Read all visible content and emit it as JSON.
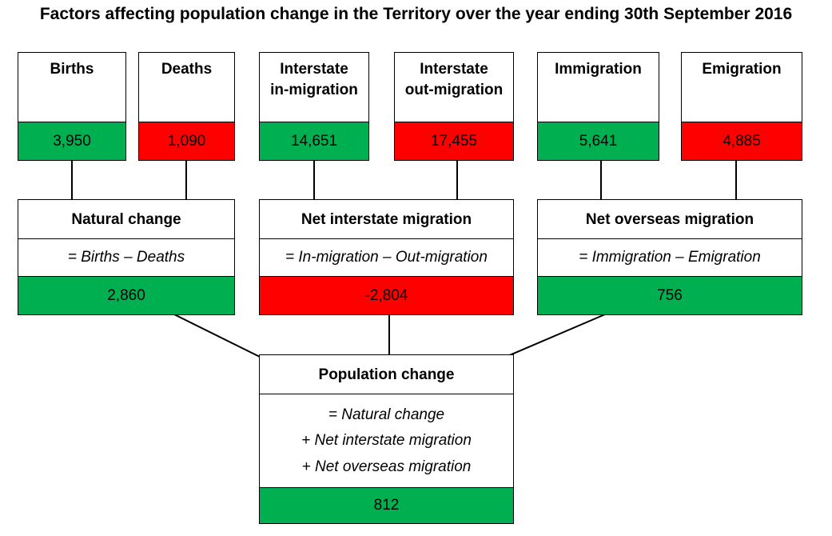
{
  "title": "Factors affecting population change in the Territory over the year ending 30th September 2016",
  "inputs": [
    {
      "label": "Births",
      "value": "3,950",
      "color": "#00b050"
    },
    {
      "label": "Deaths",
      "value": "1,090",
      "color": "#ff0000"
    },
    {
      "label": "Interstate in-migration",
      "line1": "Interstate",
      "line2": "in-migration",
      "value": "14,651",
      "color": "#00b050"
    },
    {
      "label": "Interstate out-migration",
      "line1": "Interstate",
      "line2": "out-migration",
      "value": "17,455",
      "color": "#ff0000"
    },
    {
      "label": "Immigration",
      "value": "5,641",
      "color": "#00b050"
    },
    {
      "label": "Emigration",
      "value": "4,885",
      "color": "#ff0000"
    }
  ],
  "components": [
    {
      "label": "Natural change",
      "formula": "= Births – Deaths",
      "value": "2,860",
      "color": "#00b050"
    },
    {
      "label": "Net interstate migration",
      "formula": "= In-migration – Out-migration",
      "value": "-2,804",
      "color": "#ff0000"
    },
    {
      "label": "Net overseas migration",
      "formula": "= Immigration – Emigration",
      "value": "756",
      "color": "#00b050"
    }
  ],
  "result": {
    "label": "Population change",
    "formula_lines": [
      "= Natural change",
      "+ Net interstate migration",
      "+ Net overseas migration"
    ],
    "value": "812",
    "color": "#00b050"
  }
}
